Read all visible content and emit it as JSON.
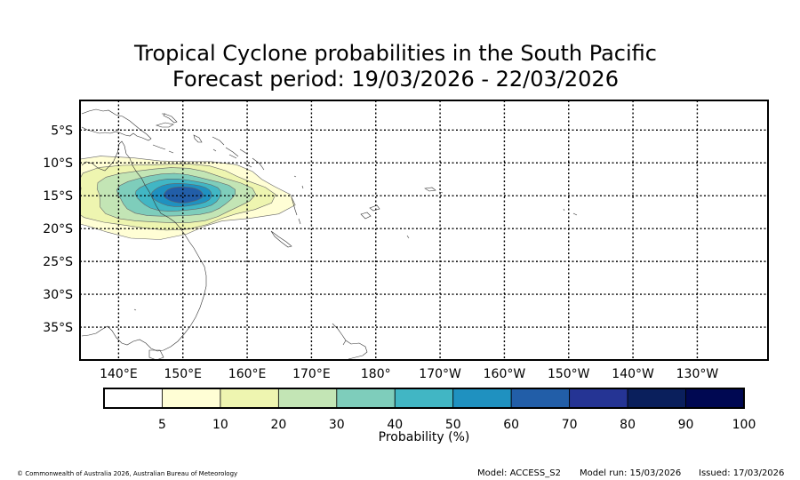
{
  "chart_data": {
    "type": "heatmap",
    "title": "Tropical Cyclone probabilities in the South Pacific",
    "subtitle": "Forecast period: 19/03/2026 - 22/03/2026",
    "x_ticks": [
      "140°E",
      "150°E",
      "160°E",
      "170°E",
      "180°",
      "170°W",
      "160°W",
      "150°W",
      "140°W",
      "130°W"
    ],
    "x_tick_lon": [
      140,
      150,
      160,
      170,
      180,
      190,
      200,
      210,
      220,
      230
    ],
    "y_ticks": [
      "5°S",
      "10°S",
      "15°S",
      "20°S",
      "25°S",
      "30°S",
      "35°S"
    ],
    "y_tick_lat": [
      -5,
      -10,
      -15,
      -20,
      -25,
      -30,
      -35
    ],
    "xlim": [
      134,
      241
    ],
    "ylim": [
      -40,
      -0.5
    ],
    "grid": true,
    "colorbar": {
      "label": "Probability (%)",
      "bounds": [
        0,
        5,
        10,
        20,
        30,
        40,
        50,
        60,
        70,
        80,
        90,
        100
      ],
      "tick_labels": [
        "5",
        "10",
        "20",
        "30",
        "40",
        "50",
        "60",
        "70",
        "80",
        "90",
        "100"
      ],
      "colors": [
        "#ffffff",
        "#fffed5",
        "#eef5b0",
        "#c3e5b5",
        "#7ecdbb",
        "#41b6c4",
        "#1f91c0",
        "#225ea8",
        "#253494",
        "#0a1f5c",
        "#000852"
      ]
    },
    "probability_region": {
      "description_levels": [
        5,
        10,
        20,
        30,
        40,
        50,
        60
      ],
      "center_lon": 149.5,
      "center_lat": -14.8,
      "max_probability": 60
    }
  },
  "footer": {
    "copyright": "© Commonwealth of Australia 2026, Australian Bureau of Meteorology",
    "model": "Model: ACCESS_S2",
    "model_run": "Model run: 15/03/2026",
    "issued": "Issued: 17/03/2026"
  }
}
